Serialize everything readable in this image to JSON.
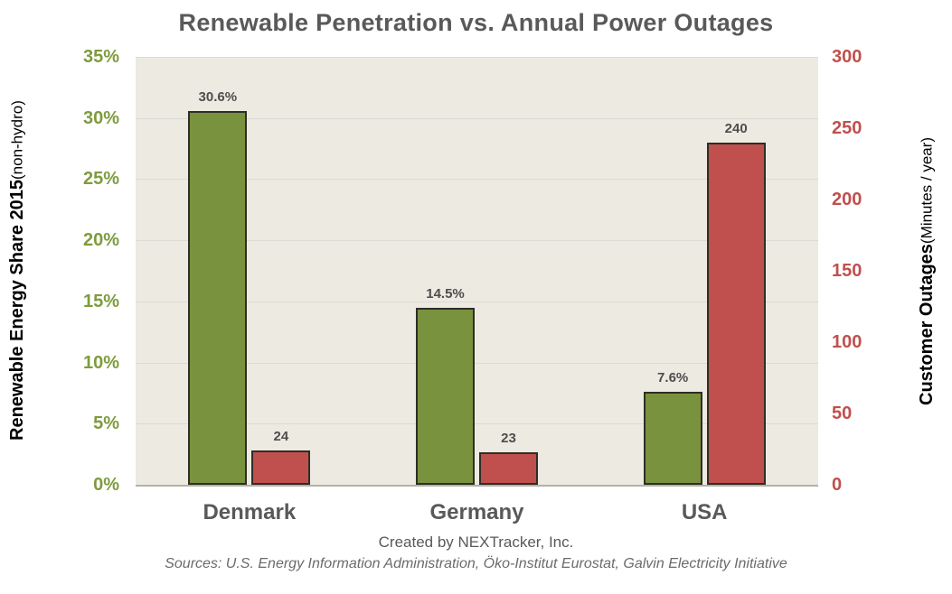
{
  "title": "Renewable Penetration vs. Annual Power Outages",
  "chart_data": {
    "type": "bar",
    "categories": [
      "Denmark",
      "Germany",
      "USA"
    ],
    "series": [
      {
        "name": "Renewable Energy Share 2015 (non-hydro)",
        "axis": "left",
        "color": "#78923D",
        "values": [
          30.6,
          14.5,
          7.6
        ],
        "labels": [
          "30.6%",
          "14.5%",
          "7.6%"
        ]
      },
      {
        "name": "Customer Outages (Minutes / year)",
        "axis": "right",
        "color": "#C0504E",
        "values": [
          24,
          23,
          240
        ],
        "labels": [
          "24",
          "23",
          "240"
        ]
      }
    ],
    "left_axis": {
      "title_bold": "Renewable Energy Share 2015",
      "title_light": " (non-hydro)",
      "ticks": [
        "35%",
        "30%",
        "25%",
        "20%",
        "15%",
        "10%",
        "5%",
        "0%"
      ],
      "min": 0,
      "max": 35,
      "color": "#7E9C3E"
    },
    "right_axis": {
      "title_bold": "Customer Outages",
      "title_light": " (Minutes / year)",
      "ticks": [
        "300",
        "250",
        "200",
        "150",
        "100",
        "50",
        "0"
      ],
      "min": 0,
      "max": 300,
      "color": "#C0504D"
    },
    "grid": true,
    "legend": "none",
    "plot_background": "#ECEAE1"
  },
  "footer": {
    "credit": "Created by NEXTracker, Inc.",
    "sources": "Sources: U.S. Energy Information Administration,  Öko-Institut Eurostat, Galvin Electricity Initiative"
  }
}
